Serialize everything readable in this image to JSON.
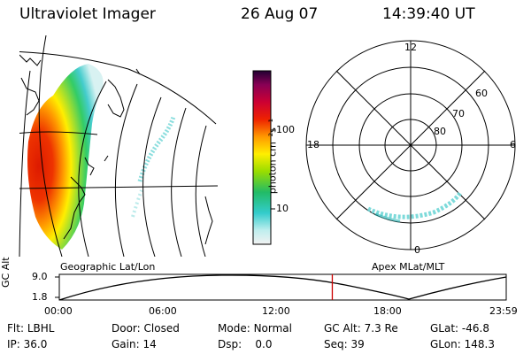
{
  "header": {
    "instrument": "Ultraviolet Imager",
    "date": "26 Aug 07",
    "time": "14:39:40 UT"
  },
  "colorbar": {
    "label": "photon cm⁻²s⁻¹",
    "ticks": [
      "100",
      "10"
    ]
  },
  "maps": {
    "left_label": "Geographic Lat/Lon",
    "right_label": "Apex MLat/MLT"
  },
  "polar_plot": {
    "mlt_labels": [
      "12",
      "18",
      "6",
      "0"
    ],
    "mlat_labels": [
      "60",
      "70",
      "80"
    ]
  },
  "altitude_plot": {
    "ylabel": "GC Alt",
    "y_ticks": [
      "9.0",
      "1.8"
    ],
    "x_ticks": [
      "00:00",
      "06:00",
      "12:00",
      "18:00",
      "23:59"
    ],
    "current_time_hours": 14.66
  },
  "status": {
    "col1": [
      {
        "label": "Flt:",
        "value": "LBHL"
      },
      {
        "label": "IP:",
        "value": "36.0"
      }
    ],
    "col2": [
      {
        "label": "Door:",
        "value": "Closed"
      },
      {
        "label": "Gain:",
        "value": "14"
      }
    ],
    "col3": [
      {
        "label": "Mode:",
        "value": "Normal"
      },
      {
        "label": "Dsp:",
        "value": "0.0"
      }
    ],
    "col4": [
      {
        "label": "GC Alt:",
        "value": "7.3 Re"
      },
      {
        "label": "Seq:",
        "value": "39"
      }
    ],
    "col5": [
      {
        "label": "GLat:",
        "value": "-46.8"
      },
      {
        "label": "GLon:",
        "value": "148.3"
      }
    ]
  },
  "colors": {
    "marker": "#cc0000",
    "aurora_faint": "#6fd6d6"
  }
}
